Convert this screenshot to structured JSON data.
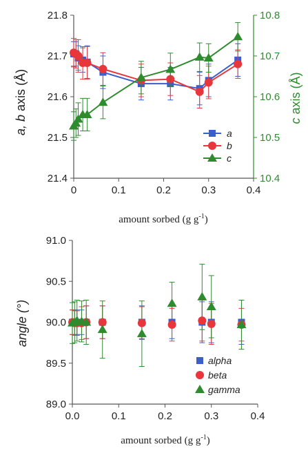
{
  "chart_data": [
    {
      "type": "line",
      "xlabel": "amount sorbed (g g",
      "xlabel_sup": "-1",
      "xlabel_close": ")",
      "ylabel_left_italic": "a, b",
      "ylabel_left_rest": " axis (Å)",
      "ylabel_right_italic": "c",
      "ylabel_right_rest": " axis (Å)",
      "xlim": [
        0,
        0.4
      ],
      "ylim_left": [
        21.4,
        21.8
      ],
      "ylim_right": [
        10.4,
        10.8
      ],
      "xticks": [
        "0",
        "0.1",
        "0.2",
        "0.3",
        "0.4"
      ],
      "yticks_left": [
        "21.4",
        "21.5",
        "21.6",
        "21.7",
        "21.8"
      ],
      "yticks_right": [
        "10.4",
        "10.5",
        "10.6",
        "10.7",
        "10.8"
      ],
      "legend_position": "bottom-right",
      "grid": false,
      "series": [
        {
          "name": "a",
          "axis": "left",
          "color": "#3a5fcd",
          "marker": "square",
          "x": [
            0.0,
            0.005,
            0.01,
            0.02,
            0.03,
            0.065,
            0.15,
            0.215,
            0.28,
            0.3,
            0.365
          ],
          "y": [
            21.705,
            21.705,
            21.695,
            21.69,
            21.685,
            21.66,
            21.632,
            21.632,
            21.62,
            21.64,
            21.69
          ],
          "err": [
            0.03,
            0.03,
            0.03,
            0.03,
            0.04,
            0.04,
            0.04,
            0.04,
            0.04,
            0.04,
            0.04
          ]
        },
        {
          "name": "b",
          "axis": "left",
          "color": "#e8373c",
          "marker": "circle",
          "x": [
            0.0,
            0.005,
            0.01,
            0.02,
            0.03,
            0.065,
            0.15,
            0.215,
            0.28,
            0.3,
            0.365
          ],
          "y": [
            21.708,
            21.705,
            21.7,
            21.683,
            21.683,
            21.668,
            21.64,
            21.643,
            21.612,
            21.635,
            21.68
          ],
          "err": [
            0.035,
            0.035,
            0.04,
            0.04,
            0.04,
            0.04,
            0.04,
            0.04,
            0.04,
            0.04,
            0.035
          ]
        },
        {
          "name": "c",
          "axis": "right",
          "color": "#2e8b2e",
          "marker": "triangle",
          "x": [
            0.0,
            0.005,
            0.01,
            0.02,
            0.03,
            0.065,
            0.15,
            0.215,
            0.28,
            0.3,
            0.365
          ],
          "y": [
            10.528,
            10.535,
            10.545,
            10.556,
            10.556,
            10.586,
            10.647,
            10.667,
            10.697,
            10.695,
            10.747
          ],
          "err": [
            0.035,
            0.035,
            0.04,
            0.04,
            0.04,
            0.04,
            0.04,
            0.04,
            0.035,
            0.035,
            0.035
          ]
        }
      ]
    },
    {
      "type": "scatter",
      "xlabel": "amount sorbed (g g",
      "xlabel_sup": "-1",
      "xlabel_close": ")",
      "ylabel": "angle (°)",
      "xlim": [
        0,
        0.4
      ],
      "ylim": [
        89.0,
        91.0
      ],
      "xticks": [
        "0.0",
        "0.1",
        "0.2",
        "0.3",
        "0.4"
      ],
      "yticks": [
        "89.0",
        "89.5",
        "90.0",
        "90.5",
        "91.0"
      ],
      "legend_position": "bottom-right",
      "grid": false,
      "series": [
        {
          "name": "alpha",
          "color": "#3a5fcd",
          "marker": "square",
          "x": [
            0.0,
            0.005,
            0.01,
            0.02,
            0.03,
            0.065,
            0.15,
            0.215,
            0.28,
            0.3,
            0.365
          ],
          "y": [
            90.0,
            90.0,
            90.0,
            90.0,
            90.0,
            90.0,
            90.0,
            90.0,
            90.0,
            90.0,
            90.0
          ],
          "err": [
            0.15,
            0.15,
            0.15,
            0.15,
            0.2,
            0.2,
            0.2,
            0.2,
            0.25,
            0.25,
            0.27
          ]
        },
        {
          "name": "beta",
          "color": "#e8373c",
          "marker": "circle",
          "x": [
            0.0,
            0.005,
            0.01,
            0.02,
            0.03,
            0.065,
            0.15,
            0.215,
            0.28,
            0.3,
            0.365
          ],
          "y": [
            90.0,
            89.99,
            89.99,
            89.99,
            90.0,
            90.0,
            89.99,
            89.97,
            90.02,
            89.98,
            89.97
          ],
          "err": [
            0.15,
            0.15,
            0.15,
            0.2,
            0.2,
            0.2,
            0.2,
            0.2,
            0.25,
            0.25,
            0.2
          ]
        },
        {
          "name": "gamma",
          "color": "#2e8b2e",
          "marker": "triangle",
          "x": [
            0.0,
            0.005,
            0.01,
            0.02,
            0.03,
            0.065,
            0.15,
            0.215,
            0.28,
            0.3,
            0.365
          ],
          "y": [
            89.99,
            90.0,
            90.02,
            90.01,
            90.0,
            89.91,
            89.86,
            90.23,
            90.31,
            90.19,
            89.97
          ],
          "err": [
            0.25,
            0.25,
            0.25,
            0.25,
            0.27,
            0.35,
            0.4,
            0.26,
            0.4,
            0.38,
            0.3
          ]
        }
      ]
    }
  ]
}
